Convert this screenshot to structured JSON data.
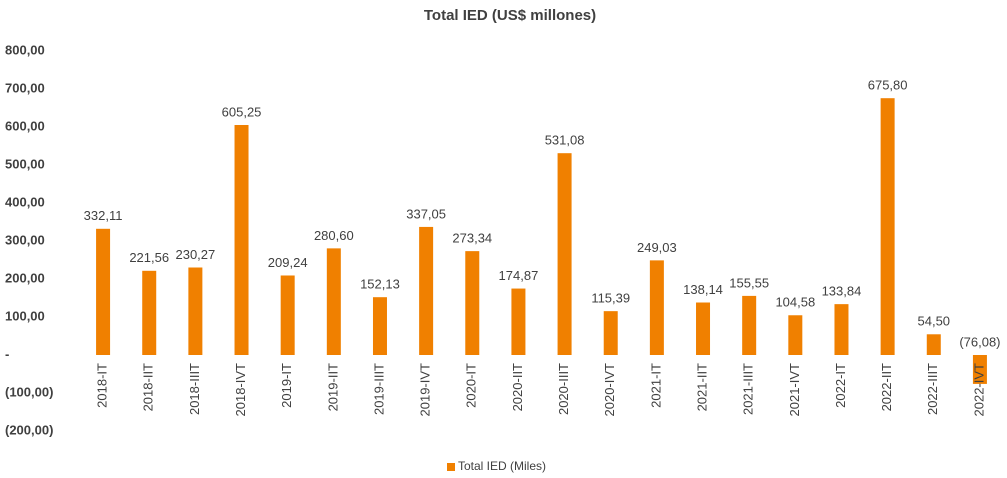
{
  "chart_data": {
    "type": "bar",
    "title": "Total IED (US$ millones)",
    "categories": [
      "2018-IT",
      "2018-IIT",
      "2018-IIIT",
      "2018-IVT",
      "2019-IT",
      "2019-IIT",
      "2019-IIIT",
      "2019-IVT",
      "2020-IT",
      "2020-IIT",
      "2020-IIIT",
      "2020-IVT",
      "2021-IT",
      "2021-IIT",
      "2021-IIIT",
      "2021-IVT",
      "2022-IT",
      "2022-IIT",
      "2022-IIIT",
      "2022-IVT"
    ],
    "series": [
      {
        "name": "Total IED (Miles)",
        "color": "#f08000",
        "values": [
          332.11,
          221.56,
          230.27,
          605.25,
          209.24,
          280.6,
          152.13,
          337.05,
          273.34,
          174.87,
          531.08,
          115.39,
          249.03,
          138.14,
          155.55,
          104.58,
          133.84,
          675.8,
          54.5,
          -76.08
        ],
        "value_labels": [
          "332,11",
          "221,56",
          "230,27",
          "605,25",
          "209,24",
          "280,60",
          "152,13",
          "337,05",
          "273,34",
          "174,87",
          "531,08",
          "115,39",
          "249,03",
          "138,14",
          "155,55",
          "104,58",
          "133,84",
          "675,80",
          "54,50",
          "(76,08)"
        ]
      }
    ],
    "ylim": [
      -200,
      800
    ],
    "yticks": [
      {
        "value": -200,
        "label": "(200,00)"
      },
      {
        "value": -100,
        "label": "(100,00)"
      },
      {
        "value": 0,
        "label": "-"
      },
      {
        "value": 100,
        "label": "100,00"
      },
      {
        "value": 200,
        "label": "200,00"
      },
      {
        "value": 300,
        "label": "300,00"
      },
      {
        "value": 400,
        "label": "400,00"
      },
      {
        "value": 500,
        "label": "500,00"
      },
      {
        "value": 600,
        "label": "600,00"
      },
      {
        "value": 700,
        "label": "700,00"
      },
      {
        "value": 800,
        "label": "800,00"
      }
    ],
    "legend": "bottom"
  }
}
